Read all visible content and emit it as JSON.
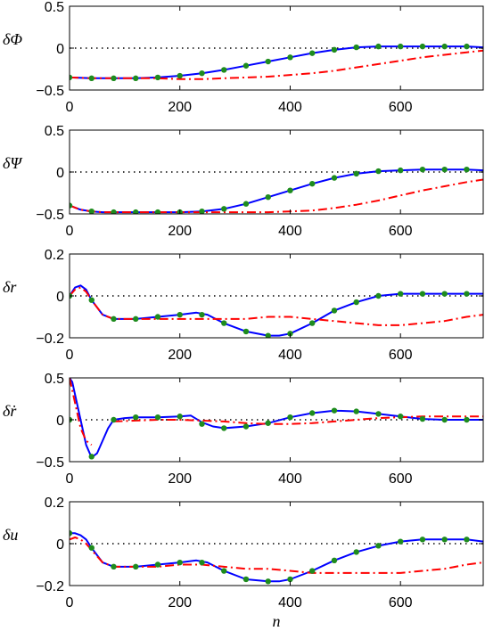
{
  "colors": {
    "blue": "#0000ff",
    "red": "#ff0000",
    "green": "#1e8c1e",
    "zero": "#000000"
  },
  "chart_data": [
    {
      "type": "line",
      "ylabel": "δΦ",
      "xlabel": "",
      "xlim": [
        0,
        750
      ],
      "ylim": [
        -0.5,
        0.5
      ],
      "xticks": [
        0,
        200,
        400,
        600
      ],
      "yticks": [
        -0.5,
        0,
        0.5
      ],
      "ytick_labels": [
        "−0.5",
        "0",
        "0.5"
      ],
      "zero_line": true,
      "series": [
        {
          "style": "solid",
          "color": "blue",
          "x": [
            0,
            40,
            80,
            120,
            160,
            200,
            240,
            280,
            320,
            360,
            400,
            440,
            480,
            520,
            560,
            600,
            640,
            680,
            720,
            750
          ],
          "y": [
            -0.35,
            -0.36,
            -0.36,
            -0.36,
            -0.35,
            -0.33,
            -0.3,
            -0.26,
            -0.21,
            -0.16,
            -0.11,
            -0.06,
            -0.02,
            0.01,
            0.02,
            0.02,
            0.02,
            0.02,
            0.02,
            0.01
          ]
        },
        {
          "style": "dashdot",
          "color": "red",
          "x": [
            0,
            40,
            80,
            120,
            160,
            200,
            240,
            280,
            320,
            360,
            400,
            440,
            480,
            520,
            560,
            600,
            640,
            680,
            720,
            750
          ],
          "y": [
            -0.35,
            -0.36,
            -0.36,
            -0.36,
            -0.36,
            -0.37,
            -0.37,
            -0.36,
            -0.35,
            -0.34,
            -0.32,
            -0.3,
            -0.27,
            -0.23,
            -0.19,
            -0.15,
            -0.11,
            -0.08,
            -0.05,
            -0.03
          ]
        },
        {
          "style": "markers",
          "color": "green",
          "x": [
            0,
            40,
            80,
            120,
            160,
            200,
            240,
            280,
            320,
            360,
            400,
            440,
            480,
            520,
            560,
            600,
            640,
            680,
            720
          ],
          "y": [
            -0.35,
            -0.36,
            -0.36,
            -0.36,
            -0.35,
            -0.33,
            -0.3,
            -0.26,
            -0.21,
            -0.16,
            -0.11,
            -0.06,
            -0.02,
            0.01,
            0.02,
            0.02,
            0.02,
            0.02,
            0.02
          ]
        }
      ]
    },
    {
      "type": "line",
      "ylabel": "δΨ",
      "xlabel": "",
      "xlim": [
        0,
        750
      ],
      "ylim": [
        -0.5,
        0.5
      ],
      "xticks": [
        0,
        200,
        400,
        600
      ],
      "yticks": [
        -0.5,
        0,
        0.5
      ],
      "ytick_labels": [
        "−0.5",
        "0",
        "0.5"
      ],
      "zero_line": true,
      "series": [
        {
          "style": "solid",
          "color": "blue",
          "x": [
            0,
            20,
            40,
            60,
            80,
            120,
            160,
            200,
            240,
            280,
            320,
            360,
            400,
            440,
            480,
            520,
            560,
            600,
            640,
            680,
            720,
            750
          ],
          "y": [
            -0.4,
            -0.45,
            -0.47,
            -0.48,
            -0.48,
            -0.48,
            -0.48,
            -0.48,
            -0.47,
            -0.44,
            -0.38,
            -0.3,
            -0.22,
            -0.14,
            -0.07,
            -0.02,
            0.01,
            0.02,
            0.03,
            0.03,
            0.03,
            0.02
          ]
        },
        {
          "style": "dashdot",
          "color": "red",
          "x": [
            0,
            20,
            40,
            60,
            80,
            120,
            160,
            200,
            240,
            280,
            320,
            360,
            400,
            440,
            480,
            520,
            560,
            600,
            640,
            680,
            720,
            750
          ],
          "y": [
            -0.4,
            -0.45,
            -0.47,
            -0.48,
            -0.48,
            -0.48,
            -0.48,
            -0.48,
            -0.48,
            -0.48,
            -0.48,
            -0.48,
            -0.47,
            -0.46,
            -0.43,
            -0.39,
            -0.34,
            -0.28,
            -0.22,
            -0.17,
            -0.12,
            -0.09
          ]
        },
        {
          "style": "markers",
          "color": "green",
          "x": [
            0,
            40,
            80,
            120,
            160,
            200,
            240,
            280,
            320,
            360,
            400,
            440,
            480,
            520,
            560,
            600,
            640,
            680,
            720
          ],
          "y": [
            -0.4,
            -0.47,
            -0.48,
            -0.48,
            -0.48,
            -0.48,
            -0.47,
            -0.44,
            -0.38,
            -0.3,
            -0.22,
            -0.14,
            -0.07,
            -0.02,
            0.01,
            0.02,
            0.03,
            0.03,
            0.03
          ]
        }
      ]
    },
    {
      "type": "line",
      "ylabel": "δr",
      "xlabel": "",
      "xlim": [
        0,
        750
      ],
      "ylim": [
        -0.2,
        0.2
      ],
      "xticks": [
        0,
        200,
        400,
        600
      ],
      "yticks": [
        -0.2,
        0,
        0.2
      ],
      "ytick_labels": [
        "−0.2",
        "0",
        "0.2"
      ],
      "zero_line": true,
      "series": [
        {
          "style": "solid",
          "color": "blue",
          "x": [
            0,
            10,
            20,
            30,
            40,
            60,
            80,
            120,
            160,
            200,
            230,
            250,
            280,
            320,
            360,
            380,
            400,
            440,
            480,
            520,
            560,
            600,
            640,
            680,
            720,
            750
          ],
          "y": [
            0,
            0.04,
            0.05,
            0.03,
            -0.02,
            -0.09,
            -0.11,
            -0.11,
            -0.1,
            -0.09,
            -0.08,
            -0.09,
            -0.13,
            -0.17,
            -0.19,
            -0.19,
            -0.18,
            -0.13,
            -0.07,
            -0.03,
            0,
            0.01,
            0.01,
            0.01,
            0.01,
            0.01
          ]
        },
        {
          "style": "dashdot",
          "color": "red",
          "x": [
            0,
            10,
            20,
            30,
            40,
            60,
            80,
            120,
            160,
            200,
            240,
            280,
            320,
            360,
            400,
            440,
            480,
            520,
            560,
            600,
            640,
            680,
            720,
            750
          ],
          "y": [
            0,
            0.03,
            0.04,
            0.02,
            -0.02,
            -0.09,
            -0.11,
            -0.11,
            -0.11,
            -0.11,
            -0.11,
            -0.11,
            -0.11,
            -0.1,
            -0.1,
            -0.11,
            -0.12,
            -0.13,
            -0.14,
            -0.14,
            -0.13,
            -0.12,
            -0.1,
            -0.09
          ]
        },
        {
          "style": "markers",
          "color": "green",
          "x": [
            0,
            40,
            80,
            120,
            160,
            200,
            240,
            280,
            320,
            360,
            400,
            440,
            480,
            520,
            560,
            600,
            640,
            680,
            720
          ],
          "y": [
            0,
            -0.02,
            -0.11,
            -0.11,
            -0.1,
            -0.09,
            -0.09,
            -0.13,
            -0.17,
            -0.19,
            -0.18,
            -0.13,
            -0.07,
            -0.03,
            0,
            0.01,
            0.01,
            0.01,
            0.01
          ]
        }
      ]
    },
    {
      "type": "line",
      "ylabel": "δṙ",
      "xlabel": "",
      "xlim": [
        0,
        750
      ],
      "ylim": [
        -0.5,
        0.5
      ],
      "xticks": [
        0,
        200,
        400,
        600
      ],
      "yticks": [
        -0.5,
        0,
        0.5
      ],
      "ytick_labels": [
        "−0.5",
        "0",
        "0.5"
      ],
      "zero_line": true,
      "series": [
        {
          "style": "solid",
          "color": "blue",
          "x": [
            0,
            5,
            10,
            20,
            30,
            40,
            50,
            60,
            70,
            80,
            100,
            120,
            160,
            200,
            220,
            240,
            260,
            280,
            320,
            360,
            400,
            440,
            480,
            520,
            560,
            600,
            640,
            680,
            720,
            750
          ],
          "y": [
            0.5,
            0.45,
            0.3,
            0.0,
            -0.3,
            -0.45,
            -0.4,
            -0.25,
            -0.1,
            0.0,
            0.02,
            0.03,
            0.03,
            0.04,
            0.05,
            -0.03,
            -0.08,
            -0.1,
            -0.08,
            -0.04,
            0.03,
            0.08,
            0.11,
            0.1,
            0.07,
            0.04,
            0.01,
            0.0,
            0.0,
            0.0
          ]
        },
        {
          "style": "dashdot",
          "color": "red",
          "x": [
            0,
            5,
            10,
            20,
            30,
            40
          ],
          "y": [
            0.5,
            0.35,
            0.2,
            -0.1,
            -0.25,
            -0.3
          ]
        },
        {
          "style": "dashdot",
          "color": "red",
          "x": [
            80,
            120,
            160,
            200,
            240,
            280,
            320,
            360,
            400,
            440,
            480,
            520,
            560,
            600,
            640,
            680,
            720,
            750
          ],
          "y": [
            -0.02,
            -0.01,
            0.0,
            0.0,
            -0.01,
            -0.02,
            -0.04,
            -0.05,
            -0.05,
            -0.04,
            -0.02,
            0.0,
            0.02,
            0.03,
            0.04,
            0.04,
            0.04,
            0.04
          ]
        },
        {
          "style": "markers",
          "color": "green",
          "x": [
            0,
            40,
            80,
            120,
            160,
            200,
            240,
            280,
            320,
            360,
            400,
            440,
            480,
            520,
            560,
            600,
            640,
            680,
            720
          ],
          "y": [
            0.0,
            -0.44,
            0.0,
            0.03,
            0.03,
            0.04,
            -0.05,
            -0.1,
            -0.08,
            -0.04,
            0.03,
            0.08,
            0.11,
            0.1,
            0.07,
            0.04,
            0.01,
            0.0,
            0.0
          ]
        }
      ]
    },
    {
      "type": "line",
      "ylabel": "δu",
      "xlabel": "n",
      "xlim": [
        0,
        750
      ],
      "ylim": [
        -0.2,
        0.2
      ],
      "xticks": [
        0,
        200,
        400,
        600
      ],
      "yticks": [
        -0.2,
        0,
        0.2
      ],
      "ytick_labels": [
        "−0.2",
        "0",
        "0.2"
      ],
      "zero_line": true,
      "series": [
        {
          "style": "solid",
          "color": "blue",
          "x": [
            0,
            10,
            20,
            30,
            40,
            60,
            80,
            120,
            160,
            200,
            230,
            250,
            280,
            320,
            360,
            380,
            400,
            440,
            480,
            520,
            560,
            600,
            640,
            680,
            720,
            750
          ],
          "y": [
            0.05,
            0.05,
            0.04,
            0.02,
            -0.02,
            -0.09,
            -0.11,
            -0.11,
            -0.1,
            -0.09,
            -0.08,
            -0.09,
            -0.13,
            -0.17,
            -0.18,
            -0.18,
            -0.17,
            -0.13,
            -0.08,
            -0.04,
            -0.01,
            0.01,
            0.02,
            0.02,
            0.02,
            0.01
          ]
        },
        {
          "style": "dashdot",
          "color": "red",
          "x": [
            0,
            10,
            20,
            30,
            40,
            60,
            80,
            120,
            160,
            200,
            240,
            280,
            320,
            360,
            400,
            440,
            480,
            520,
            560,
            600,
            640,
            680,
            720,
            750
          ],
          "y": [
            0.02,
            0.03,
            0.02,
            0.0,
            -0.03,
            -0.09,
            -0.11,
            -0.11,
            -0.11,
            -0.1,
            -0.1,
            -0.11,
            -0.12,
            -0.12,
            -0.13,
            -0.14,
            -0.14,
            -0.14,
            -0.14,
            -0.14,
            -0.13,
            -0.12,
            -0.1,
            -0.09
          ]
        },
        {
          "style": "markers",
          "color": "green",
          "x": [
            0,
            40,
            80,
            120,
            160,
            200,
            240,
            280,
            320,
            360,
            400,
            440,
            480,
            520,
            560,
            600,
            640,
            680,
            720
          ],
          "y": [
            0.05,
            -0.02,
            -0.11,
            -0.11,
            -0.1,
            -0.09,
            -0.09,
            -0.13,
            -0.17,
            -0.18,
            -0.17,
            -0.13,
            -0.08,
            -0.04,
            -0.01,
            0.01,
            0.02,
            0.02,
            0.02
          ]
        }
      ]
    }
  ]
}
